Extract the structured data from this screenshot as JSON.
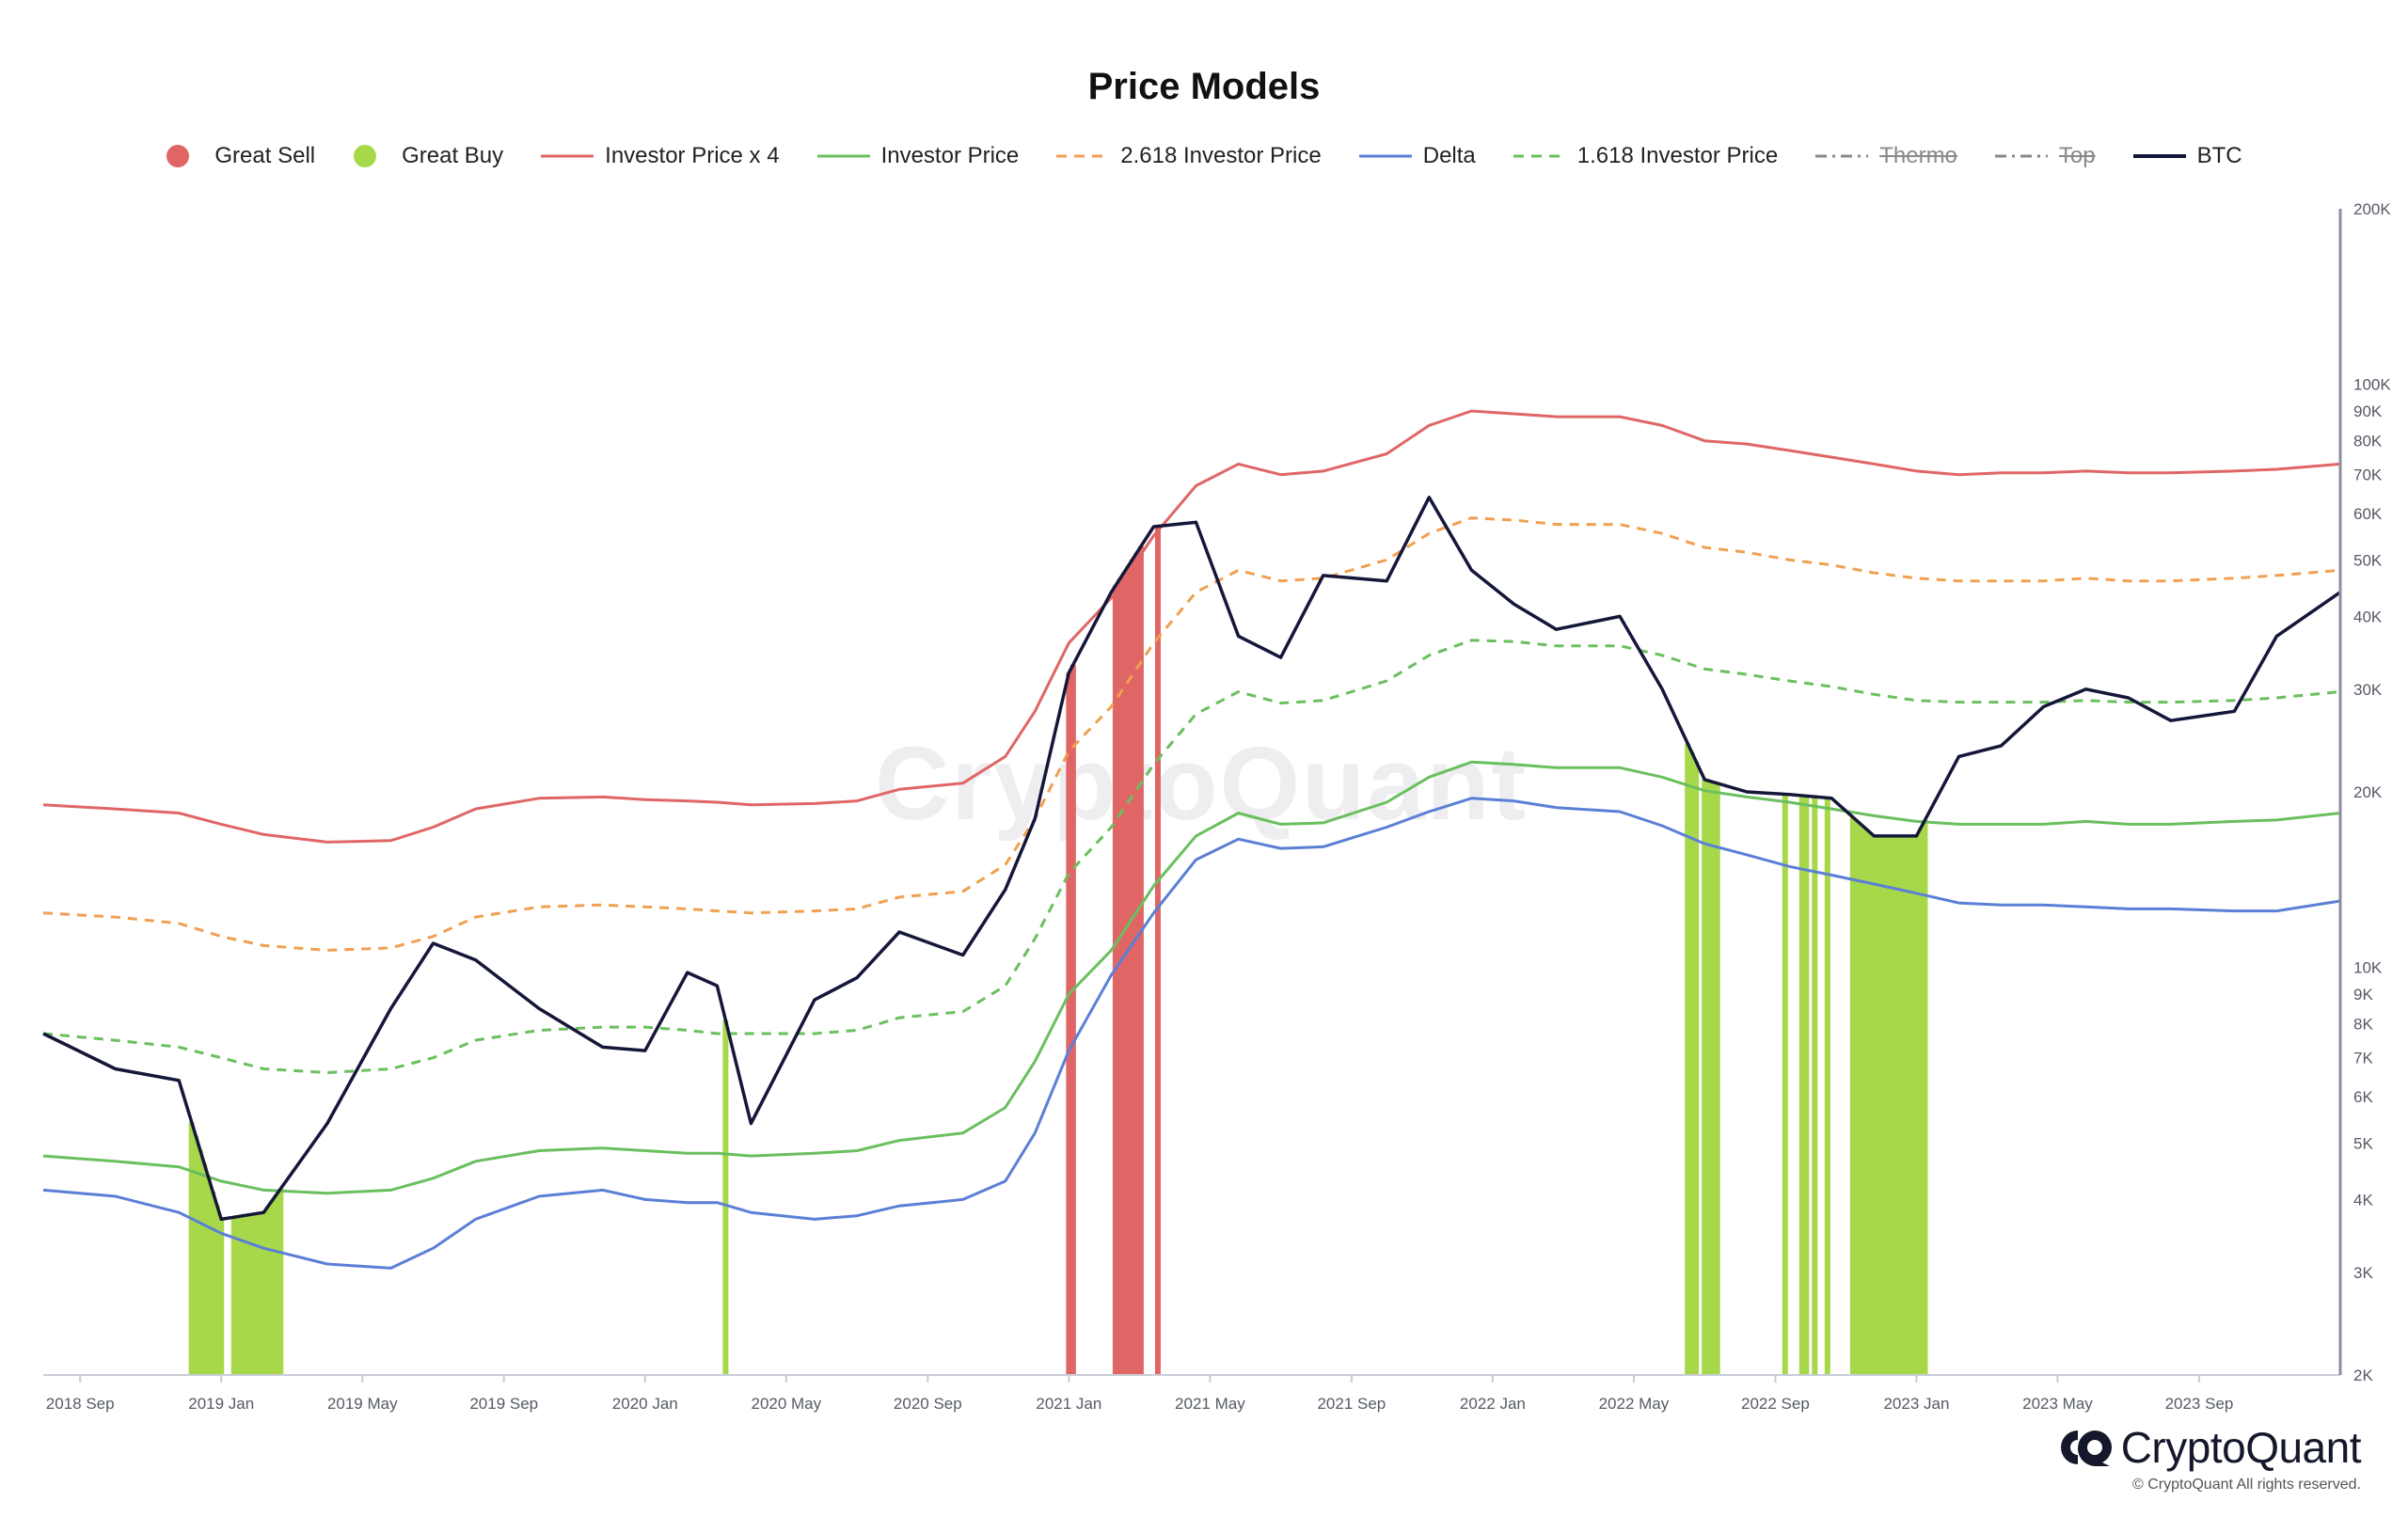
{
  "title": "Price Models",
  "watermark": "CryptoQuant",
  "brand": {
    "name": "CryptoQuant",
    "copyright": "© CryptoQuant All rights reserved."
  },
  "legend": [
    {
      "label": "Great Sell",
      "kind": "dot",
      "color": "#e06666",
      "enabled": true
    },
    {
      "label": "Great Buy",
      "kind": "dot",
      "color": "#a6d84a",
      "enabled": true
    },
    {
      "label": "Investor Price x 4",
      "kind": "line",
      "color": "#e06666",
      "enabled": true
    },
    {
      "label": "Investor Price",
      "kind": "line",
      "color": "#6abf5e",
      "enabled": true
    },
    {
      "label": "2.618 Investor Price",
      "kind": "dash",
      "color": "#f0a050",
      "enabled": true
    },
    {
      "label": "Delta",
      "kind": "line",
      "color": "#5b7fd6",
      "enabled": true
    },
    {
      "label": "1.618 Investor Price",
      "kind": "dash",
      "color": "#6abf5e",
      "enabled": true
    },
    {
      "label": "Thermo",
      "kind": "dashdot",
      "color": "#888888",
      "enabled": false
    },
    {
      "label": "Top",
      "kind": "dashdot",
      "color": "#888888",
      "enabled": false
    },
    {
      "label": "BTC",
      "kind": "line",
      "color": "#15173a",
      "enabled": true
    }
  ],
  "chart_data": {
    "type": "line",
    "title": "Price Models",
    "y_scale": "log",
    "ylim": [
      2000,
      200000
    ],
    "xlim": [
      2018.58,
      2024.0
    ],
    "x_tick_labels": [
      {
        "label": "2018 Sep",
        "x": 2018.667
      },
      {
        "label": "2019 Jan",
        "x": 2019.0
      },
      {
        "label": "2019 May",
        "x": 2019.333
      },
      {
        "label": "2019 Sep",
        "x": 2019.667
      },
      {
        "label": "2020 Jan",
        "x": 2020.0
      },
      {
        "label": "2020 May",
        "x": 2020.333
      },
      {
        "label": "2020 Sep",
        "x": 2020.667
      },
      {
        "label": "2021 Jan",
        "x": 2021.0
      },
      {
        "label": "2021 May",
        "x": 2021.333
      },
      {
        "label": "2021 Sep",
        "x": 2021.667
      },
      {
        "label": "2022 Jan",
        "x": 2022.0
      },
      {
        "label": "2022 May",
        "x": 2022.333
      },
      {
        "label": "2022 Sep",
        "x": 2022.667
      },
      {
        "label": "2023 Jan",
        "x": 2023.0
      },
      {
        "label": "2023 May",
        "x": 2023.333
      },
      {
        "label": "2023 Sep",
        "x": 2023.667
      }
    ],
    "y_tick_labels": [
      {
        "label": "200K",
        "v": 200000
      },
      {
        "label": "100K",
        "v": 100000
      },
      {
        "label": "90K",
        "v": 90000
      },
      {
        "label": "80K",
        "v": 80000
      },
      {
        "label": "70K",
        "v": 70000
      },
      {
        "label": "60K",
        "v": 60000
      },
      {
        "label": "50K",
        "v": 50000
      },
      {
        "label": "40K",
        "v": 40000
      },
      {
        "label": "30K",
        "v": 30000
      },
      {
        "label": "20K",
        "v": 20000
      },
      {
        "label": "10K",
        "v": 10000
      },
      {
        "label": "9K",
        "v": 9000
      },
      {
        "label": "8K",
        "v": 8000
      },
      {
        "label": "7K",
        "v": 7000
      },
      {
        "label": "6K",
        "v": 6000
      },
      {
        "label": "5K",
        "v": 5000
      },
      {
        "label": "4K",
        "v": 4000
      },
      {
        "label": "3K",
        "v": 3000
      },
      {
        "label": "2K",
        "v": 2000
      }
    ],
    "x": [
      2018.58,
      2018.75,
      2018.9,
      2019.0,
      2019.1,
      2019.25,
      2019.4,
      2019.5,
      2019.6,
      2019.75,
      2019.9,
      2020.0,
      2020.1,
      2020.17,
      2020.25,
      2020.4,
      2020.5,
      2020.6,
      2020.75,
      2020.85,
      2020.92,
      2021.0,
      2021.1,
      2021.2,
      2021.3,
      2021.4,
      2021.5,
      2021.6,
      2021.75,
      2021.85,
      2021.95,
      2022.05,
      2022.15,
      2022.3,
      2022.4,
      2022.5,
      2022.6,
      2022.7,
      2022.8,
      2022.9,
      2023.0,
      2023.1,
      2023.2,
      2023.3,
      2023.4,
      2023.5,
      2023.6,
      2023.75,
      2023.85,
      2024.0
    ],
    "series": [
      {
        "name": "Investor Price x 4",
        "color": "#e06666",
        "style": "solid",
        "values": [
          19000,
          18700,
          18400,
          17600,
          16900,
          16400,
          16500,
          17400,
          18700,
          19500,
          19600,
          19400,
          19300,
          19200,
          19000,
          19100,
          19300,
          20200,
          20700,
          23000,
          27500,
          36000,
          43000,
          55000,
          67000,
          73000,
          70000,
          71000,
          76000,
          85000,
          90000,
          89000,
          88000,
          88000,
          85000,
          80000,
          79000,
          77000,
          75000,
          73000,
          71000,
          70000,
          70500,
          70500,
          71000,
          70500,
          70500,
          71000,
          71500,
          73000
        ]
      },
      {
        "name": "2.618 Investor Price",
        "color": "#f0a050",
        "style": "dash",
        "values": [
          12400,
          12200,
          11900,
          11300,
          10900,
          10700,
          10800,
          11300,
          12200,
          12700,
          12800,
          12700,
          12600,
          12500,
          12400,
          12500,
          12600,
          13200,
          13500,
          15000,
          18000,
          23500,
          28000,
          36000,
          44000,
          48000,
          46000,
          46500,
          50000,
          55500,
          59000,
          58500,
          57500,
          57500,
          55500,
          52500,
          51500,
          50000,
          49000,
          47500,
          46500,
          46000,
          46000,
          46000,
          46500,
          46000,
          46000,
          46500,
          47000,
          48000
        ]
      },
      {
        "name": "1.618 Investor Price",
        "color": "#6abf5e",
        "style": "dash",
        "values": [
          7700,
          7500,
          7300,
          7000,
          6700,
          6600,
          6700,
          7000,
          7500,
          7800,
          7900,
          7900,
          7800,
          7700,
          7700,
          7700,
          7800,
          8200,
          8400,
          9300,
          11200,
          14500,
          17400,
          22300,
          27200,
          29700,
          28400,
          28700,
          31000,
          34300,
          36400,
          36200,
          35600,
          35600,
          34300,
          32500,
          31800,
          31000,
          30300,
          29400,
          28700,
          28500,
          28500,
          28500,
          28700,
          28500,
          28500,
          28700,
          29000,
          29700
        ]
      },
      {
        "name": "Investor Price",
        "color": "#6abf5e",
        "style": "solid",
        "values": [
          4750,
          4650,
          4550,
          4300,
          4150,
          4100,
          4150,
          4350,
          4650,
          4850,
          4900,
          4850,
          4800,
          4800,
          4750,
          4800,
          4850,
          5050,
          5200,
          5750,
          6900,
          9000,
          10700,
          13800,
          16800,
          18400,
          17600,
          17700,
          19200,
          21200,
          22500,
          22300,
          22000,
          22000,
          21200,
          20100,
          19600,
          19200,
          18700,
          18200,
          17800,
          17600,
          17600,
          17600,
          17800,
          17600,
          17600,
          17800,
          17900,
          18400
        ]
      },
      {
        "name": "Delta",
        "color": "#5b7fd6",
        "style": "solid",
        "values": [
          4150,
          4050,
          3800,
          3500,
          3300,
          3100,
          3050,
          3300,
          3700,
          4050,
          4150,
          4000,
          3950,
          3950,
          3800,
          3700,
          3750,
          3900,
          4000,
          4300,
          5200,
          7200,
          9700,
          12400,
          15300,
          16600,
          16000,
          16100,
          17400,
          18500,
          19500,
          19300,
          18800,
          18500,
          17500,
          16300,
          15600,
          14900,
          14400,
          13900,
          13400,
          12900,
          12800,
          12800,
          12700,
          12600,
          12600,
          12500,
          12500,
          13000
        ]
      },
      {
        "name": "BTC",
        "color": "#15173a",
        "style": "solid",
        "values": [
          7700,
          6700,
          6400,
          3700,
          3800,
          5400,
          8500,
          11000,
          10300,
          8500,
          7300,
          7200,
          9800,
          9300,
          5400,
          8800,
          9600,
          11500,
          10500,
          13600,
          18000,
          32000,
          44000,
          57000,
          58000,
          37000,
          34000,
          47000,
          46000,
          64000,
          48000,
          42000,
          38000,
          40000,
          30000,
          21000,
          20000,
          19800,
          19500,
          16800,
          16800,
          23000,
          24000,
          28000,
          30000,
          29000,
          26500,
          27500,
          37000,
          44000
        ]
      }
    ],
    "signals": {
      "great_sell": {
        "color": "#e06666",
        "x": [
          2021.0,
          2021.01,
          2021.11,
          2021.12,
          2021.13,
          2021.14,
          2021.15,
          2021.16,
          2021.17,
          2021.21
        ]
      },
      "great_buy": {
        "color": "#a6d84a",
        "x": [
          2018.93,
          2018.94,
          2018.95,
          2018.96,
          2018.97,
          2018.98,
          2018.99,
          2019.0,
          2019.03,
          2019.04,
          2019.05,
          2019.06,
          2019.07,
          2019.08,
          2019.09,
          2019.1,
          2019.11,
          2019.12,
          2019.13,
          2019.14,
          2020.19,
          2022.46,
          2022.47,
          2022.48,
          2022.5,
          2022.51,
          2022.52,
          2022.53,
          2022.69,
          2022.73,
          2022.74,
          2022.76,
          2022.79,
          2022.85,
          2022.86,
          2022.87,
          2022.88,
          2022.89,
          2022.9,
          2022.91,
          2022.92,
          2022.93,
          2022.94,
          2022.95,
          2022.96,
          2022.97,
          2022.98,
          2022.99,
          2023.0,
          2023.01,
          2023.02
        ]
      }
    }
  }
}
